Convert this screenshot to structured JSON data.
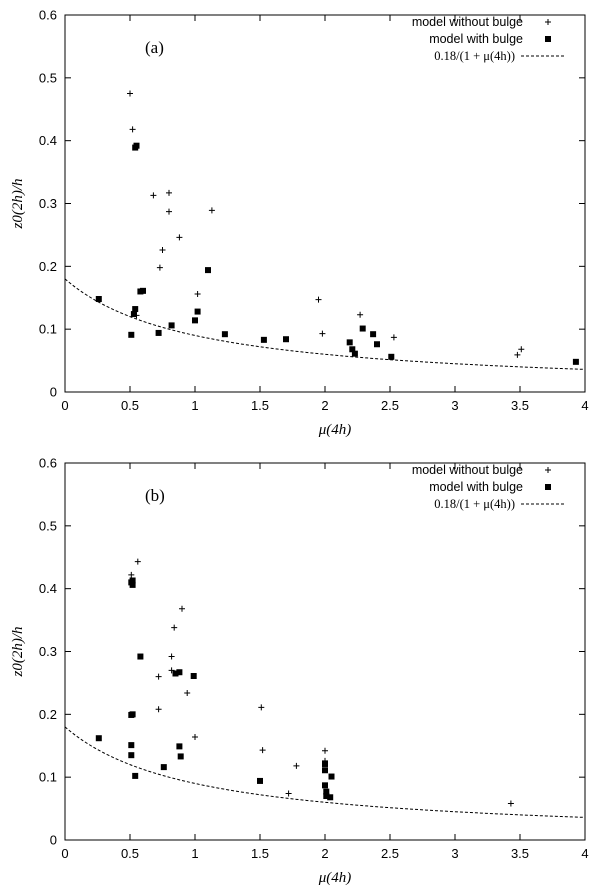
{
  "chart_data": [
    {
      "type": "scatter",
      "title": "",
      "panel_label": "(a)",
      "xlabel": "μ(4h)",
      "ylabel": "z0(2h)/h",
      "xlim": [
        0,
        4
      ],
      "ylim": [
        0,
        0.6
      ],
      "xticks": [
        "0",
        "0.5",
        "1",
        "1.5",
        "2",
        "2.5",
        "3",
        "3.5",
        "4"
      ],
      "yticks": [
        "0",
        "0.1",
        "0.2",
        "0.3",
        "0.4",
        "0.5",
        "0.6"
      ],
      "legend_position": "top-right",
      "series": [
        {
          "name": "model without bulge",
          "marker": "plus",
          "points": [
            [
              0.5,
              0.475
            ],
            [
              0.52,
              0.418
            ],
            [
              0.68,
              0.313
            ],
            [
              0.8,
              0.317
            ],
            [
              0.8,
              0.287
            ],
            [
              0.75,
              0.226
            ],
            [
              0.73,
              0.198
            ],
            [
              0.88,
              0.246
            ],
            [
              1.13,
              0.289
            ],
            [
              1.02,
              0.156
            ],
            [
              1.95,
              0.147
            ],
            [
              1.98,
              0.093
            ],
            [
              2.27,
              0.123
            ],
            [
              2.53,
              0.087
            ],
            [
              3.48,
              0.059
            ],
            [
              3.51,
              0.068
            ],
            [
              0.55,
              0.122
            ]
          ]
        },
        {
          "name": "model with bulge",
          "marker": "square",
          "points": [
            [
              0.26,
              0.148
            ],
            [
              0.51,
              0.091
            ],
            [
              0.53,
              0.124
            ],
            [
              0.54,
              0.132
            ],
            [
              0.54,
              0.389
            ],
            [
              0.55,
              0.392
            ],
            [
              0.58,
              0.16
            ],
            [
              0.6,
              0.161
            ],
            [
              0.72,
              0.094
            ],
            [
              0.82,
              0.106
            ],
            [
              1.0,
              0.114
            ],
            [
              1.02,
              0.128
            ],
            [
              1.1,
              0.194
            ],
            [
              1.23,
              0.092
            ],
            [
              1.53,
              0.083
            ],
            [
              1.7,
              0.084
            ],
            [
              2.19,
              0.079
            ],
            [
              2.21,
              0.068
            ],
            [
              2.23,
              0.061
            ],
            [
              2.29,
              0.101
            ],
            [
              2.37,
              0.092
            ],
            [
              2.4,
              0.076
            ],
            [
              2.51,
              0.056
            ],
            [
              3.93,
              0.048
            ]
          ]
        },
        {
          "name": "0.18/(1 + μ(4h))",
          "type": "line",
          "style": "dashed",
          "function": "0.18/(1+x)",
          "x_range": [
            0,
            4
          ]
        }
      ]
    },
    {
      "type": "scatter",
      "title": "",
      "panel_label": "(b)",
      "xlabel": "μ(4h)",
      "ylabel": "z0(2h)/h",
      "xlim": [
        0,
        4
      ],
      "ylim": [
        0,
        0.6
      ],
      "xticks": [
        "0",
        "0.5",
        "1",
        "1.5",
        "2",
        "2.5",
        "3",
        "3.5",
        "4"
      ],
      "yticks": [
        "0",
        "0.1",
        "0.2",
        "0.3",
        "0.4",
        "0.5",
        "0.6"
      ],
      "legend_position": "top-right",
      "series": [
        {
          "name": "model without bulge",
          "marker": "plus",
          "points": [
            [
              0.51,
              0.422
            ],
            [
              0.56,
              0.443
            ],
            [
              0.84,
              0.338
            ],
            [
              0.9,
              0.368
            ],
            [
              0.82,
              0.292
            ],
            [
              0.82,
              0.27
            ],
            [
              0.72,
              0.26
            ],
            [
              0.72,
              0.208
            ],
            [
              0.94,
              0.234
            ],
            [
              1.0,
              0.164
            ],
            [
              1.51,
              0.211
            ],
            [
              1.52,
              0.143
            ],
            [
              1.78,
              0.118
            ],
            [
              1.72,
              0.074
            ],
            [
              2.0,
              0.142
            ],
            [
              2.0,
              0.126
            ],
            [
              3.43,
              0.058
            ]
          ]
        },
        {
          "name": "model with bulge",
          "marker": "square",
          "points": [
            [
              0.26,
              0.162
            ],
            [
              0.51,
              0.41
            ],
            [
              0.52,
              0.413
            ],
            [
              0.52,
              0.406
            ],
            [
              0.51,
              0.199
            ],
            [
              0.52,
              0.2
            ],
            [
              0.51,
              0.151
            ],
            [
              0.51,
              0.135
            ],
            [
              0.54,
              0.102
            ],
            [
              0.58,
              0.292
            ],
            [
              0.76,
              0.116
            ],
            [
              0.85,
              0.265
            ],
            [
              0.88,
              0.267
            ],
            [
              0.88,
              0.149
            ],
            [
              0.89,
              0.133
            ],
            [
              0.99,
              0.261
            ],
            [
              1.5,
              0.094
            ],
            [
              2.0,
              0.121
            ],
            [
              2.0,
              0.111
            ],
            [
              2.0,
              0.087
            ],
            [
              2.01,
              0.077
            ],
            [
              2.01,
              0.07
            ],
            [
              2.04,
              0.068
            ],
            [
              2.05,
              0.101
            ]
          ]
        },
        {
          "name": "0.18/(1 + μ(4h))",
          "type": "line",
          "style": "dashed",
          "function": "0.18/(1+x)",
          "x_range": [
            0,
            4
          ]
        }
      ]
    }
  ]
}
